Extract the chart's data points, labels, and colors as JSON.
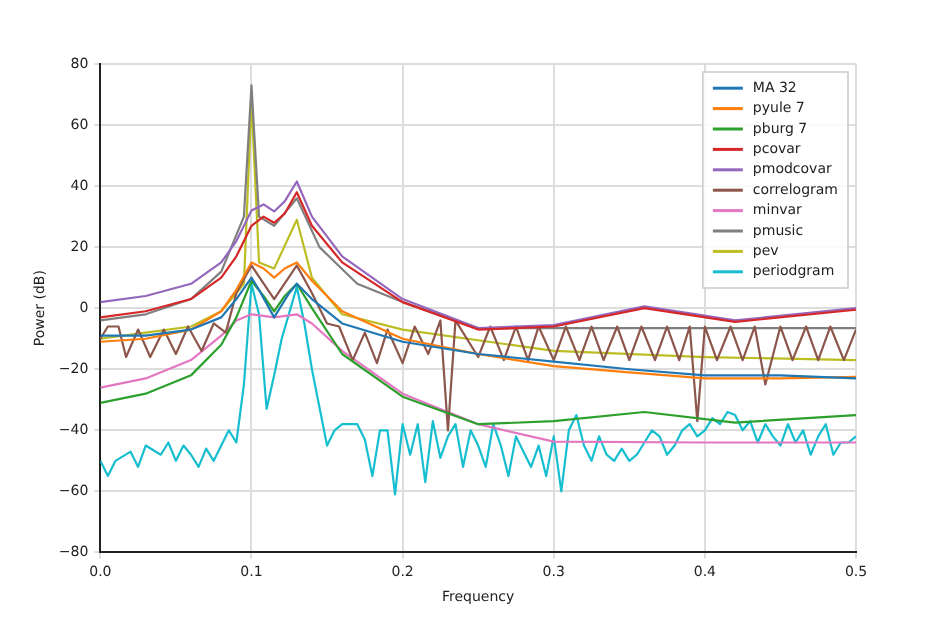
{
  "chart_data": {
    "type": "line",
    "xlabel": "Frequency",
    "ylabel": "Power (dB)",
    "xlim": [
      0,
      0.5
    ],
    "ylim": [
      -80,
      80
    ],
    "xticks": [
      {
        "value": 0,
        "label": "0.0"
      },
      {
        "value": 0.1,
        "label": "0.1"
      },
      {
        "value": 0.2,
        "label": "0.2"
      },
      {
        "value": 0.3,
        "label": "0.3"
      },
      {
        "value": 0.4,
        "label": "0.4"
      },
      {
        "value": 0.5,
        "label": "0.5"
      }
    ],
    "yticks": [
      -80,
      -60,
      -40,
      -20,
      0,
      20,
      40,
      60,
      80
    ],
    "grid": true,
    "legend": "top right",
    "marker": "none",
    "line_style": "solid",
    "series": [
      {
        "name": "MA 32",
        "color": "#1f77b4",
        "x": [
          0,
          0.03,
          0.06,
          0.08,
          0.09,
          0.1,
          0.105,
          0.115,
          0.125,
          0.13,
          0.14,
          0.16,
          0.2,
          0.25,
          0.3,
          0.35,
          0.4,
          0.45,
          0.5
        ],
        "values": [
          -9,
          -9,
          -7,
          -3,
          3,
          10,
          6,
          -3,
          5,
          8,
          3,
          -5,
          -11,
          -15,
          -17.5,
          -20,
          -22,
          -22,
          -23
        ]
      },
      {
        "name": "pyule 7",
        "color": "#ff7f0e",
        "x": [
          0,
          0.03,
          0.06,
          0.08,
          0.09,
          0.1,
          0.108,
          0.115,
          0.122,
          0.13,
          0.14,
          0.16,
          0.2,
          0.25,
          0.3,
          0.35,
          0.4,
          0.45,
          0.5
        ],
        "values": [
          -11,
          -10,
          -7,
          -1,
          6,
          15,
          13,
          10,
          13,
          15,
          9,
          -1,
          -10,
          -15,
          -19,
          -21,
          -23,
          -23,
          -22.5
        ]
      },
      {
        "name": "pburg 7",
        "color": "#2ca02c",
        "x": [
          0,
          0.03,
          0.06,
          0.08,
          0.09,
          0.1,
          0.108,
          0.115,
          0.122,
          0.13,
          0.14,
          0.16,
          0.2,
          0.25,
          0.3,
          0.36,
          0.42,
          0.5
        ],
        "values": [
          -31,
          -28,
          -22,
          -12,
          -3,
          9,
          4,
          -1,
          4,
          8,
          0,
          -15,
          -29,
          -38,
          -37,
          -34,
          -37.5,
          -35
        ]
      },
      {
        "name": "pcovar",
        "color": "#d62728",
        "x": [
          0,
          0.03,
          0.06,
          0.08,
          0.09,
          0.1,
          0.108,
          0.115,
          0.122,
          0.13,
          0.14,
          0.16,
          0.2,
          0.25,
          0.3,
          0.36,
          0.42,
          0.5
        ],
        "values": [
          -3,
          -1,
          3,
          10,
          17,
          27,
          30,
          28,
          31,
          38,
          27,
          15,
          2,
          -7,
          -6,
          0,
          -4.5,
          -0.5
        ]
      },
      {
        "name": "pmodcovar",
        "color": "#9467bd",
        "x": [
          0,
          0.03,
          0.06,
          0.08,
          0.09,
          0.1,
          0.108,
          0.115,
          0.122,
          0.13,
          0.14,
          0.16,
          0.2,
          0.25,
          0.3,
          0.36,
          0.42,
          0.5
        ],
        "values": [
          2,
          4,
          8,
          15,
          22,
          32,
          34,
          31.7,
          35,
          41.5,
          30,
          17,
          3,
          -6.5,
          -5.5,
          0.6,
          -4,
          0
        ]
      },
      {
        "name": "correlogram",
        "color": "#8c564b",
        "x": [
          0,
          0.005,
          0.012,
          0.017,
          0.025,
          0.033,
          0.042,
          0.05,
          0.058,
          0.067,
          0.075,
          0.083,
          0.09,
          0.1,
          0.115,
          0.13,
          0.14,
          0.15,
          0.158,
          0.167,
          0.175,
          0.183,
          0.19,
          0.2,
          0.208,
          0.217,
          0.225,
          0.23,
          0.235,
          0.25,
          0.258,
          0.267,
          0.275,
          0.283,
          0.29,
          0.3,
          0.308,
          0.317,
          0.325,
          0.333,
          0.342,
          0.35,
          0.358,
          0.367,
          0.375,
          0.383,
          0.39,
          0.395,
          0.4,
          0.408,
          0.417,
          0.425,
          0.433,
          0.44,
          0.45,
          0.458,
          0.467,
          0.475,
          0.483,
          0.492,
          0.5
        ],
        "values": [
          -10,
          -6,
          -6,
          -16,
          -7,
          -16,
          -7,
          -15,
          -6,
          -14,
          -5,
          -8,
          5,
          14,
          3,
          14,
          5,
          -5,
          -6,
          -17,
          -8,
          -18,
          -7,
          -18,
          -6,
          -15,
          -4,
          -40,
          -4,
          -16,
          -6,
          -17,
          -6,
          -17,
          -6,
          -17,
          -6,
          -17,
          -6,
          -17,
          -6,
          -17,
          -6,
          -17,
          -6,
          -17,
          -6,
          -37,
          -6,
          -17,
          -6,
          -17,
          -6,
          -25,
          -6,
          -17,
          -6,
          -17,
          -6,
          -17,
          -7
        ]
      },
      {
        "name": "minvar",
        "color": "#e377c2",
        "x": [
          0,
          0.03,
          0.06,
          0.08,
          0.09,
          0.1,
          0.115,
          0.13,
          0.14,
          0.16,
          0.2,
          0.25,
          0.3,
          0.4,
          0.5
        ],
        "values": [
          -26,
          -23,
          -17,
          -9,
          -4,
          -2,
          -3,
          -2,
          -5,
          -14,
          -28,
          -38,
          -43.7,
          -44,
          -44
        ]
      },
      {
        "name": "pmusic",
        "color": "#7f7f7f",
        "x": [
          0,
          0.03,
          0.06,
          0.08,
          0.095,
          0.1,
          0.105,
          0.115,
          0.13,
          0.145,
          0.17,
          0.2,
          0.25,
          0.3,
          0.4,
          0.5
        ],
        "values": [
          -4,
          -2,
          3,
          12,
          30,
          73,
          30,
          27,
          36,
          20,
          8,
          2,
          -6.5,
          -6.5,
          -6.5,
          -6.5
        ]
      },
      {
        "name": "pev",
        "color": "#bcbd22",
        "x": [
          0,
          0.03,
          0.06,
          0.08,
          0.095,
          0.1,
          0.105,
          0.115,
          0.13,
          0.14,
          0.16,
          0.2,
          0.3,
          0.4,
          0.5
        ],
        "values": [
          -10,
          -8,
          -6,
          -1,
          8,
          68,
          15,
          13,
          29,
          10,
          -2,
          -7,
          -14,
          -16,
          -17
        ]
      },
      {
        "name": "periodgram",
        "color": "#17becf",
        "x": [
          0,
          0.005,
          0.01,
          0.02,
          0.025,
          0.03,
          0.04,
          0.045,
          0.05,
          0.055,
          0.06,
          0.065,
          0.07,
          0.075,
          0.08,
          0.085,
          0.09,
          0.095,
          0.1,
          0.105,
          0.11,
          0.115,
          0.12,
          0.13,
          0.135,
          0.14,
          0.15,
          0.155,
          0.16,
          0.17,
          0.175,
          0.18,
          0.185,
          0.19,
          0.195,
          0.2,
          0.205,
          0.21,
          0.215,
          0.22,
          0.225,
          0.23,
          0.235,
          0.24,
          0.245,
          0.25,
          0.255,
          0.26,
          0.265,
          0.27,
          0.275,
          0.28,
          0.285,
          0.29,
          0.295,
          0.3,
          0.305,
          0.31,
          0.315,
          0.32,
          0.325,
          0.33,
          0.335,
          0.34,
          0.345,
          0.35,
          0.355,
          0.36,
          0.365,
          0.37,
          0.375,
          0.38,
          0.385,
          0.39,
          0.395,
          0.4,
          0.405,
          0.41,
          0.415,
          0.42,
          0.425,
          0.43,
          0.435,
          0.44,
          0.445,
          0.45,
          0.455,
          0.46,
          0.465,
          0.47,
          0.475,
          0.48,
          0.485,
          0.49,
          0.495,
          0.5
        ],
        "values": [
          -50,
          -55,
          -50,
          -47,
          -52,
          -45,
          -48,
          -44,
          -50,
          -45,
          -48,
          -52,
          -46,
          -50,
          -45,
          -40,
          -44,
          -25,
          8,
          -2,
          -33,
          -22,
          -10,
          7,
          -5,
          -20,
          -45,
          -40,
          -38,
          -38,
          -43,
          -55,
          -40,
          -40,
          -61,
          -38,
          -48,
          -38,
          -57,
          -37,
          -49,
          -42,
          -38,
          -52,
          -40,
          -45,
          -52,
          -38,
          -45,
          -55,
          -42,
          -47,
          -52,
          -45,
          -55,
          -42,
          -60,
          -40,
          -35,
          -45,
          -50,
          -42,
          -48,
          -50,
          -46,
          -50,
          -48,
          -44,
          -40,
          -42,
          -48,
          -45,
          -40,
          -38,
          -42,
          -40,
          -36,
          -38,
          -34,
          -35,
          -40,
          -37,
          -44,
          -38,
          -42,
          -45,
          -38,
          -44,
          -40,
          -48,
          -42,
          -38,
          -48,
          -44,
          -44,
          -42
        ]
      }
    ]
  }
}
